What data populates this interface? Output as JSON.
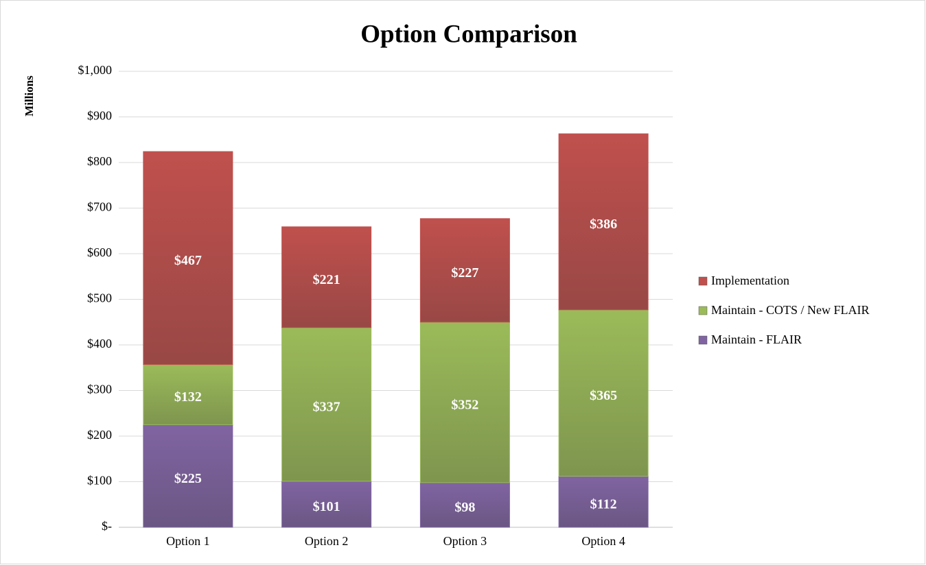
{
  "chart_data": {
    "type": "stacked_bar",
    "title": "Option Comparison",
    "y_label": "Millions",
    "categories": [
      "Option 1",
      "Option 2",
      "Option 3",
      "Option 4"
    ],
    "series": [
      {
        "name": "Maintain - FLAIR",
        "color": "#8064a2",
        "values": [
          225,
          101,
          98,
          112
        ],
        "value_labels": [
          "$225",
          "$101",
          "$98",
          "$112"
        ]
      },
      {
        "name": "Maintain - COTS / New FLAIR",
        "color": "#9bbb59",
        "values": [
          132,
          337,
          352,
          365
        ],
        "value_labels": [
          "$132",
          "$337",
          "$352",
          "$365"
        ]
      },
      {
        "name": "Implementation",
        "color": "#c0504d",
        "values": [
          467,
          221,
          227,
          386
        ],
        "value_labels": [
          "$467",
          "$221",
          "$227",
          "$386"
        ]
      }
    ],
    "ylim": [
      0,
      1000
    ],
    "yticks": [
      {
        "value": 0,
        "label": "$-"
      },
      {
        "value": 100,
        "label": "$100"
      },
      {
        "value": 200,
        "label": "$200"
      },
      {
        "value": 300,
        "label": "$300"
      },
      {
        "value": 400,
        "label": "$400"
      },
      {
        "value": 500,
        "label": "$500"
      },
      {
        "value": 600,
        "label": "$600"
      },
      {
        "value": 700,
        "label": "$700"
      },
      {
        "value": 800,
        "label": "$800"
      },
      {
        "value": 900,
        "label": "$900"
      },
      {
        "value": 1000,
        "label": "$1,000"
      }
    ],
    "grid": true,
    "legend": "right"
  }
}
